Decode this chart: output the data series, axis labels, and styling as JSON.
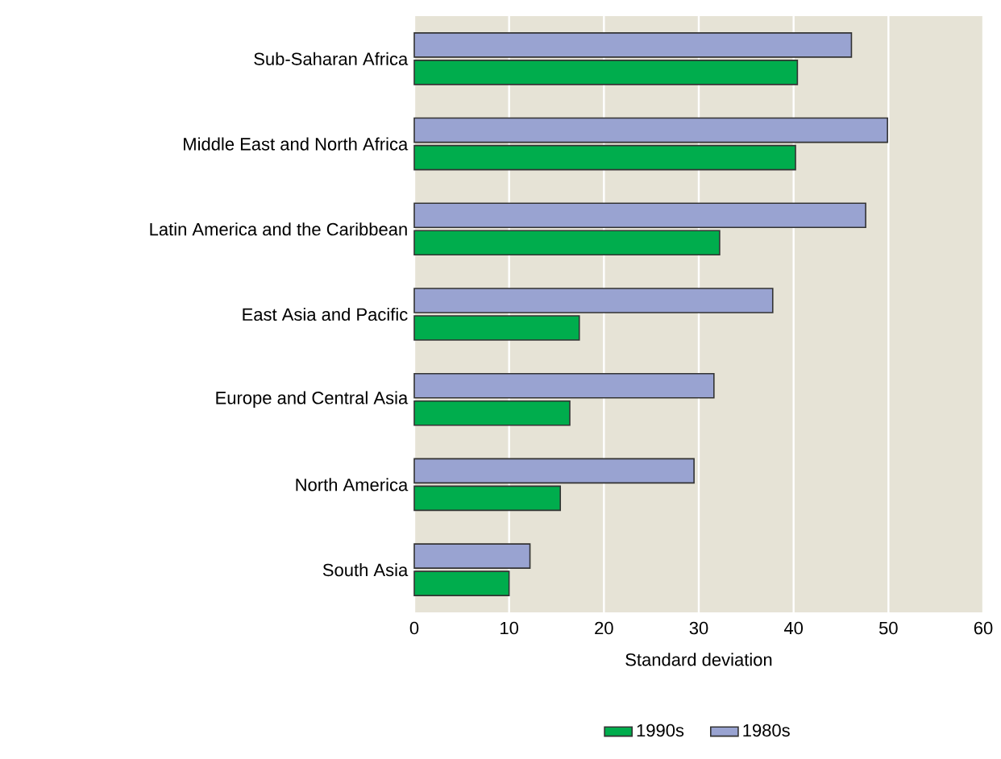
{
  "chart_data": {
    "type": "bar",
    "orientation": "horizontal",
    "categories": [
      "Sub-Saharan Africa",
      "Middle East and North Africa",
      "Latin America and the Caribbean",
      "East Asia and Pacific",
      "Europe and Central Asia",
      "North America",
      "South Asia"
    ],
    "series": [
      {
        "name": "1990s",
        "color": "#00ad4d",
        "values": [
          40.4,
          40.2,
          32.2,
          17.4,
          16.4,
          15.4,
          10.0
        ]
      },
      {
        "name": "1980s",
        "color": "#99a3d1",
        "values": [
          46.1,
          49.9,
          47.6,
          37.8,
          31.6,
          29.5,
          12.2
        ]
      }
    ],
    "xlim": [
      0,
      60
    ],
    "xticks": [
      0,
      10,
      20,
      30,
      40,
      50,
      60
    ],
    "xlabel": "Standard deviation",
    "grid": "x",
    "legend": "bottom"
  }
}
